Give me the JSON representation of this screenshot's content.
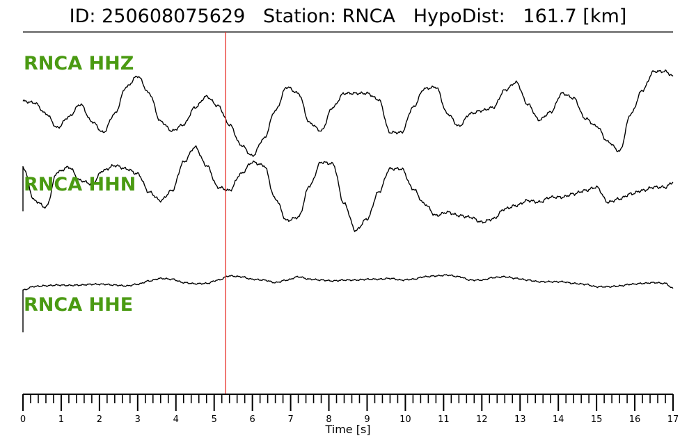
{
  "header": {
    "title": "ID: 250608075629   Station: RNCA   HypoDist:   161.7 [km]"
  },
  "chart_data": {
    "type": "line",
    "title": "ID: 250608075629   Station: RNCA   HypoDist:   161.7 [km]",
    "xlabel": "Time [s]",
    "ylabel": "",
    "xlim": [
      0,
      17
    ],
    "x_ticks": [
      "0",
      "1",
      "2",
      "3",
      "4",
      "5",
      "6",
      "7",
      "8",
      "9",
      "10",
      "11",
      "12",
      "13",
      "14",
      "15",
      "16",
      "17"
    ],
    "minor_tick_step": 0.2,
    "grid": false,
    "marker_line": {
      "x": 5.3,
      "color": "#e8302a"
    },
    "trace_color": "#000000",
    "label_color": "#4a9a12",
    "series": [
      {
        "name": "RNCA HHZ",
        "x": [
          0,
          0.3,
          0.6,
          0.9,
          1.2,
          1.5,
          1.8,
          2.1,
          2.4,
          2.7,
          3.0,
          3.3,
          3.6,
          3.9,
          4.2,
          4.5,
          4.8,
          5.1,
          5.4,
          5.7,
          6.0,
          6.3,
          6.6,
          6.9,
          7.2,
          7.5,
          7.8,
          8.1,
          8.4,
          8.7,
          9.0,
          9.3,
          9.6,
          9.9,
          10.2,
          10.5,
          10.8,
          11.1,
          11.4,
          11.7,
          12.0,
          12.3,
          12.6,
          12.9,
          13.2,
          13.5,
          13.8,
          14.1,
          14.4,
          14.7,
          15.0,
          15.3,
          15.6,
          15.9,
          16.2,
          16.5,
          16.8,
          17.0
        ],
        "values": [
          0.1,
          0.05,
          -0.3,
          -0.75,
          -0.4,
          0.0,
          -0.55,
          -0.9,
          -0.3,
          0.55,
          0.9,
          0.35,
          -0.55,
          -0.85,
          -0.65,
          -0.1,
          0.25,
          -0.05,
          -0.65,
          -1.3,
          -1.65,
          -1.1,
          -0.2,
          0.55,
          0.35,
          -0.6,
          -0.85,
          -0.1,
          0.35,
          0.35,
          0.35,
          0.15,
          -0.9,
          -0.9,
          -0.1,
          0.5,
          0.55,
          -0.3,
          -0.7,
          -0.3,
          -0.2,
          -0.1,
          0.45,
          0.7,
          0.0,
          -0.5,
          -0.25,
          0.35,
          0.2,
          -0.45,
          -0.7,
          -1.2,
          -1.5,
          -0.3,
          0.45,
          1.05,
          1.05,
          0.9
        ]
      },
      {
        "name": "RNCA HHN",
        "x": [
          0,
          0.3,
          0.6,
          0.9,
          1.2,
          1.5,
          1.8,
          2.1,
          2.4,
          2.7,
          3.0,
          3.3,
          3.6,
          3.9,
          4.2,
          4.5,
          4.8,
          5.1,
          5.4,
          5.7,
          6.0,
          6.3,
          6.6,
          6.9,
          7.2,
          7.5,
          7.8,
          8.1,
          8.4,
          8.7,
          9.0,
          9.3,
          9.6,
          9.9,
          10.2,
          10.5,
          10.8,
          11.1,
          11.4,
          11.7,
          12.0,
          12.3,
          12.6,
          12.9,
          13.2,
          13.5,
          13.8,
          14.1,
          14.4,
          14.7,
          15.0,
          15.3,
          15.6,
          15.9,
          16.2,
          16.5,
          16.8,
          17.0
        ],
        "values": [
          0.45,
          -0.55,
          -0.75,
          0.3,
          0.45,
          0.05,
          -0.05,
          0.35,
          0.5,
          0.4,
          0.25,
          -0.3,
          -0.55,
          -0.25,
          0.6,
          1.05,
          0.5,
          -0.15,
          -0.25,
          0.25,
          0.6,
          0.5,
          -0.5,
          -1.15,
          -1.05,
          -0.1,
          0.6,
          0.55,
          -0.65,
          -1.45,
          -1.1,
          -0.3,
          0.4,
          0.4,
          -0.2,
          -0.65,
          -1.0,
          -0.9,
          -1.0,
          -1.05,
          -1.2,
          -1.1,
          -0.8,
          -0.7,
          -0.55,
          -0.6,
          -0.45,
          -0.45,
          -0.35,
          -0.25,
          -0.15,
          -0.6,
          -0.5,
          -0.35,
          -0.25,
          -0.15,
          -0.15,
          0.0
        ]
      },
      {
        "name": "RNCA HHE",
        "x": [
          0,
          0.3,
          0.6,
          0.9,
          1.2,
          1.5,
          1.8,
          2.1,
          2.4,
          2.7,
          3.0,
          3.3,
          3.6,
          3.9,
          4.2,
          4.5,
          4.8,
          5.1,
          5.4,
          5.7,
          6.0,
          6.3,
          6.6,
          6.9,
          7.2,
          7.5,
          7.8,
          8.1,
          8.4,
          8.7,
          9.0,
          9.3,
          9.6,
          9.9,
          10.2,
          10.5,
          10.8,
          11.1,
          11.4,
          11.7,
          12.0,
          12.3,
          12.6,
          12.9,
          13.2,
          13.5,
          13.8,
          14.1,
          14.4,
          14.7,
          15.0,
          15.3,
          15.6,
          15.9,
          16.2,
          16.5,
          16.8,
          17.0
        ],
        "values": [
          -0.3,
          -0.08,
          -0.04,
          0.0,
          -0.02,
          0.0,
          0.05,
          0.05,
          0.0,
          -0.05,
          0.05,
          0.25,
          0.4,
          0.35,
          0.15,
          0.08,
          0.1,
          0.3,
          0.55,
          0.5,
          0.35,
          0.3,
          0.15,
          0.3,
          0.5,
          0.35,
          0.3,
          0.25,
          0.3,
          0.3,
          0.35,
          0.35,
          0.4,
          0.3,
          0.35,
          0.5,
          0.55,
          0.6,
          0.5,
          0.3,
          0.3,
          0.45,
          0.5,
          0.4,
          0.3,
          0.2,
          0.2,
          0.2,
          0.1,
          0.05,
          -0.1,
          -0.1,
          -0.05,
          0.05,
          0.1,
          0.15,
          0.1,
          -0.2
        ]
      }
    ]
  }
}
